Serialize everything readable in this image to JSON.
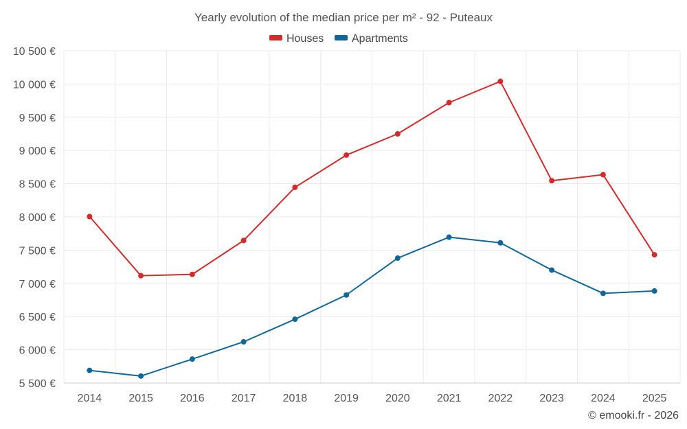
{
  "chart_data": {
    "type": "line",
    "title": "Yearly evolution of the median price per m² - 92 - Puteaux",
    "categories": [
      "2014",
      "2015",
      "2016",
      "2017",
      "2018",
      "2019",
      "2020",
      "2021",
      "2022",
      "2023",
      "2024",
      "2025"
    ],
    "series": [
      {
        "name": "Houses",
        "color": "#d42a2a",
        "values": [
          8005,
          7115,
          7135,
          7645,
          8445,
          8930,
          9250,
          9720,
          10040,
          8545,
          8635,
          7430
        ]
      },
      {
        "name": "Apartments",
        "color": "#0e6699",
        "values": [
          5690,
          5605,
          5860,
          6120,
          6460,
          6825,
          7380,
          7695,
          7610,
          7200,
          6850,
          6885
        ]
      }
    ],
    "ylim": [
      5500,
      10500
    ],
    "yticks": [
      5500,
      6000,
      6500,
      7000,
      7500,
      8000,
      8500,
      9000,
      9500,
      10000,
      10500
    ],
    "ytick_labels": [
      "5 500 €",
      "6 000 €",
      "6 500 €",
      "7 000 €",
      "7 500 €",
      "8 000 €",
      "8 500 €",
      "9 000 €",
      "9 500 €",
      "10 000 €",
      "10 500 €"
    ],
    "grid": true,
    "legend_position": "top-center",
    "xlabel": "",
    "ylabel": ""
  },
  "credit": "© emooki.fr - 2026"
}
